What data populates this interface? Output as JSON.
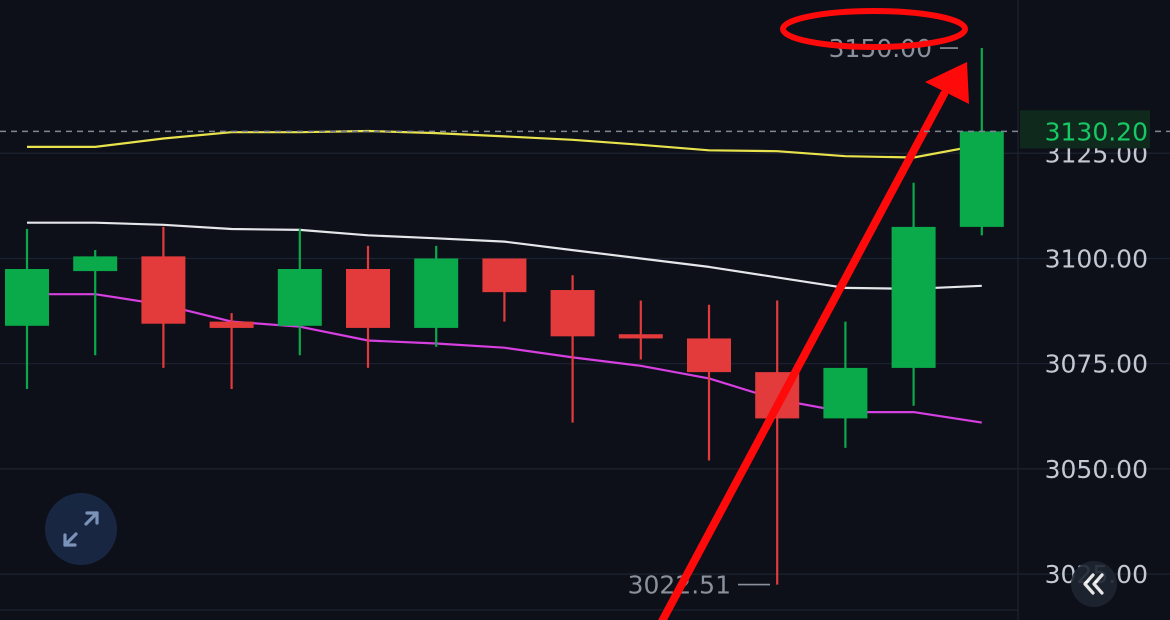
{
  "colors": {
    "background": "#0d1019",
    "grid": "#1c2330",
    "up": "#0aa94a",
    "down": "#e33a3c",
    "axis_text": "#c3c8d2",
    "annotation_text": "#8b919c",
    "price_line": "#7f8795",
    "price_label": "#17c964",
    "price_label_bg": "#0f2a1c",
    "ma_yellow": "#e8e24c",
    "ma_white": "#e4e6ea",
    "ma_magenta": "#d63fe0",
    "overlay_red": "#ff0a0a",
    "button_bg": "#1a2b4a",
    "button_icon": "#8fa9d6"
  },
  "chart_data": {
    "type": "candlestick",
    "yaxis": {
      "ticks": [
        "3125.00",
        "3100.00",
        "3075.00",
        "3050.00",
        "3025.00"
      ],
      "tick_values": [
        3125,
        3100,
        3075,
        3050,
        3025
      ],
      "ylim": [
        3016,
        3155
      ]
    },
    "current_price": {
      "value": 3130.2,
      "label": "3130.20"
    },
    "annotations": {
      "high": {
        "value": 3150.0,
        "label": "3150.00",
        "candle": 14
      },
      "low": {
        "value": 3022.51,
        "label": "3022.51",
        "candle": 11
      }
    },
    "candles": [
      {
        "open": 3084.0,
        "close": 3097.5,
        "high": 3107.0,
        "low": 3069.0
      },
      {
        "open": 3097.0,
        "close": 3100.5,
        "high": 3102.0,
        "low": 3077.0
      },
      {
        "open": 3100.5,
        "close": 3084.5,
        "high": 3107.5,
        "low": 3074.0
      },
      {
        "open": 3085.0,
        "close": 3083.5,
        "high": 3087.0,
        "low": 3069.0
      },
      {
        "open": 3084.0,
        "close": 3097.5,
        "high": 3107.0,
        "low": 3077.0
      },
      {
        "open": 3097.5,
        "close": 3083.5,
        "high": 3103.0,
        "low": 3074.0
      },
      {
        "open": 3083.5,
        "close": 3100.0,
        "high": 3103.0,
        "low": 3079.0
      },
      {
        "open": 3100.0,
        "close": 3092.0,
        "high": 3100.0,
        "low": 3085.0
      },
      {
        "open": 3092.5,
        "close": 3081.5,
        "high": 3096.0,
        "low": 3061.0
      },
      {
        "open": 3082.0,
        "close": 3081.0,
        "high": 3090.0,
        "low": 3076.0
      },
      {
        "open": 3081.0,
        "close": 3073.0,
        "high": 3089.0,
        "low": 3052.0
      },
      {
        "open": 3073.0,
        "close": 3062.0,
        "high": 3090.0,
        "low": 3022.5
      },
      {
        "open": 3062.0,
        "close": 3074.0,
        "high": 3085.0,
        "low": 3055.0
      },
      {
        "open": 3074.0,
        "close": 3107.5,
        "high": 3118.0,
        "low": 3065.0
      },
      {
        "open": 3107.5,
        "close": 3130.2,
        "high": 3150.0,
        "low": 3105.5
      }
    ],
    "moving_averages": [
      {
        "color_key": "ma_yellow",
        "values": [
          3126.5,
          3126.5,
          3128.5,
          3130.0,
          3130.0,
          3130.3,
          3129.8,
          3129.0,
          3128.2,
          3127.0,
          3125.7,
          3125.5,
          3124.3,
          3124.0,
          3127.0
        ]
      },
      {
        "color_key": "ma_white",
        "values": [
          3108.5,
          3108.5,
          3108.0,
          3107.0,
          3106.8,
          3105.5,
          3104.8,
          3104.0,
          3102.0,
          3100.0,
          3098.0,
          3095.5,
          3093.0,
          3092.8,
          3093.5
        ]
      },
      {
        "color_key": "ma_magenta",
        "values": [
          3091.5,
          3091.5,
          3089.0,
          3085.0,
          3083.8,
          3080.5,
          3079.8,
          3078.8,
          3076.5,
          3074.5,
          3071.5,
          3066.5,
          3063.5,
          3063.5,
          3061.0
        ]
      }
    ]
  },
  "controls": {
    "expand_icon": "expand-diagonal-icon",
    "collapse_icon": "double-chevron-left-icon"
  }
}
